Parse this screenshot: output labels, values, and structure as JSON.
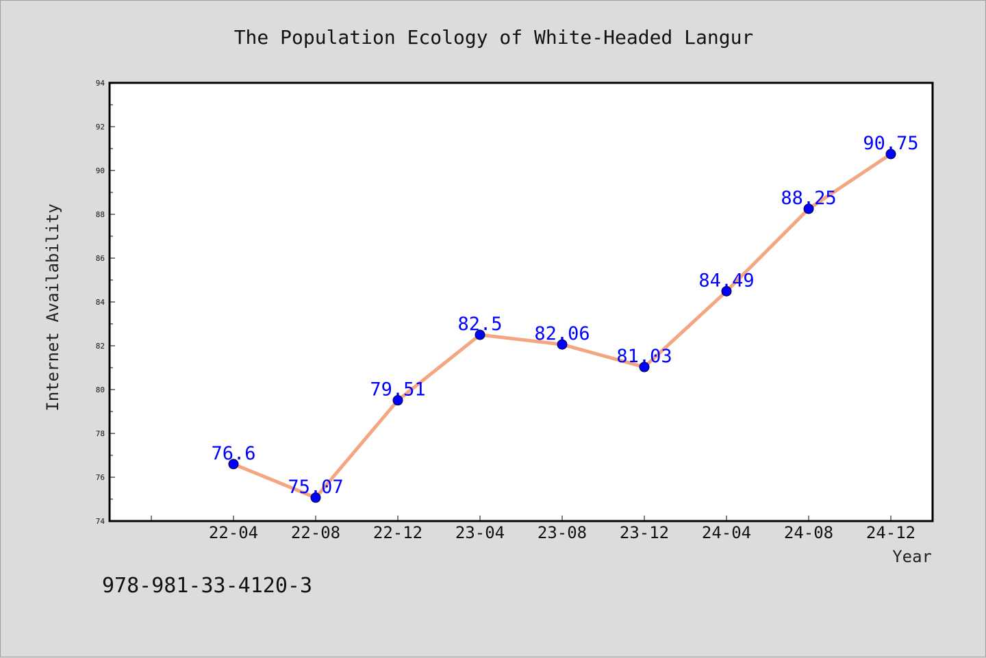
{
  "chart_data": {
    "type": "line",
    "title": "The Population Ecology of White-Headed Langur",
    "xlabel": "Year",
    "ylabel": "Internet Availability",
    "categories": [
      "22-04",
      "22-08",
      "22-12",
      "23-04",
      "23-08",
      "23-12",
      "24-04",
      "24-08",
      "24-12"
    ],
    "series": [
      {
        "values": [
          76.6,
          75.07,
          79.51,
          82.5,
          82.06,
          81.03,
          84.49,
          88.25,
          90.75
        ],
        "labels": [
          "76.6",
          "75.07",
          "79.51",
          "82.5",
          "82.06",
          "81.03",
          "84.49",
          "88.25",
          "90.75"
        ]
      }
    ],
    "ylim": [
      74,
      94
    ],
    "yticks": [
      "74",
      "76",
      "78",
      "80",
      "82",
      "84",
      "86",
      "88",
      "90",
      "92",
      "94"
    ],
    "grid": false,
    "legend": "none",
    "colors": {
      "line": "#f4a582",
      "marker": "#0000ff",
      "label": "#0000ff",
      "plot_bg": "#ffffff",
      "page_bg": "#dcdcdc"
    }
  },
  "footer": {
    "isbn": "978-981-33-4120-3"
  }
}
